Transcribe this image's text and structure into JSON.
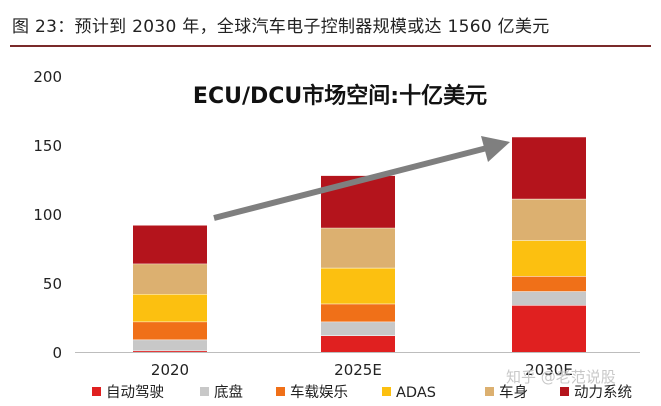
{
  "figure": {
    "title": "图 23：预计到 2030 年，全球汽车电子控制器规模或达 1560 亿美元"
  },
  "watermark": "知乎 @老范说股",
  "colors": {
    "title_rule": "#7a2a2a",
    "arrow": "#7f7f7f"
  },
  "chart_data": {
    "type": "bar",
    "stacked": true,
    "title": "ECU/DCU市场空间:十亿美元",
    "categories": [
      "2020",
      "2025E",
      "2030E"
    ],
    "ylim": [
      0,
      200
    ],
    "yticks": [
      0,
      50,
      100,
      150,
      200
    ],
    "grid": false,
    "legend_position": "bottom",
    "trend_arrow": true,
    "series": [
      {
        "name": "自动驾驶",
        "color": "#e02020",
        "values": [
          1,
          12,
          34
        ]
      },
      {
        "name": "底盘",
        "color": "#c8c8c8",
        "values": [
          8,
          10,
          10
        ]
      },
      {
        "name": "车载娱乐",
        "color": "#f07018",
        "values": [
          13,
          13,
          11
        ]
      },
      {
        "name": "ADAS",
        "color": "#fcc010",
        "values": [
          20,
          26,
          26
        ]
      },
      {
        "name": "车身",
        "color": "#dcb070",
        "values": [
          22,
          29,
          30
        ]
      },
      {
        "name": "动力系统",
        "color": "#b4141c",
        "values": [
          28,
          38,
          45
        ]
      }
    ]
  }
}
